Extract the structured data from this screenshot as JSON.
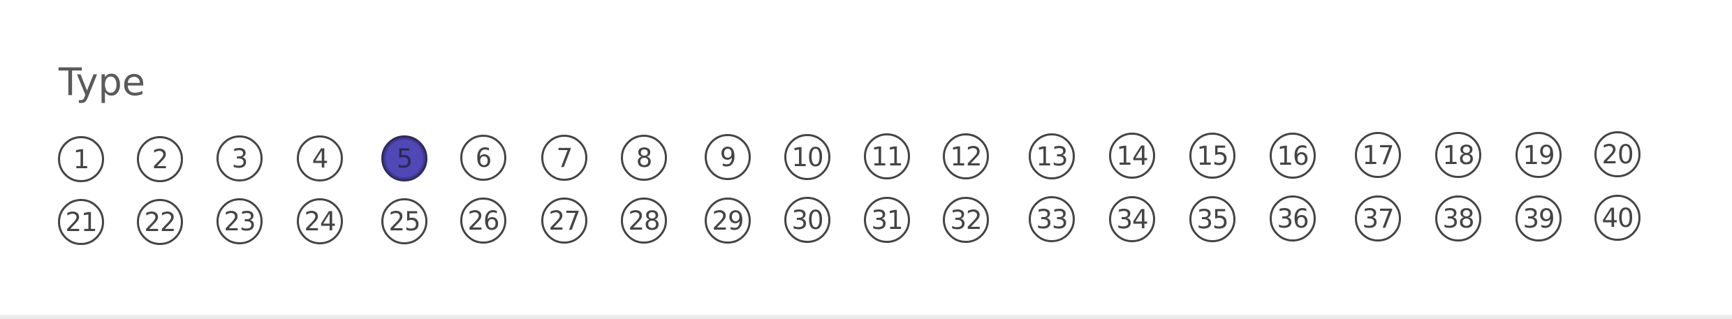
{
  "form": {
    "title": "Type",
    "selected": 5,
    "fill_color": "#5148b8",
    "bubbles": [
      "1",
      "2",
      "3",
      "4",
      "5",
      "6",
      "7",
      "8",
      "9",
      "10",
      "11",
      "12",
      "13",
      "14",
      "15",
      "16",
      "17",
      "18",
      "19",
      "20",
      "21",
      "22",
      "23",
      "24",
      "25",
      "26",
      "27",
      "28",
      "29",
      "30",
      "31",
      "32",
      "33",
      "34",
      "35",
      "36",
      "37",
      "38",
      "39",
      "40"
    ]
  }
}
